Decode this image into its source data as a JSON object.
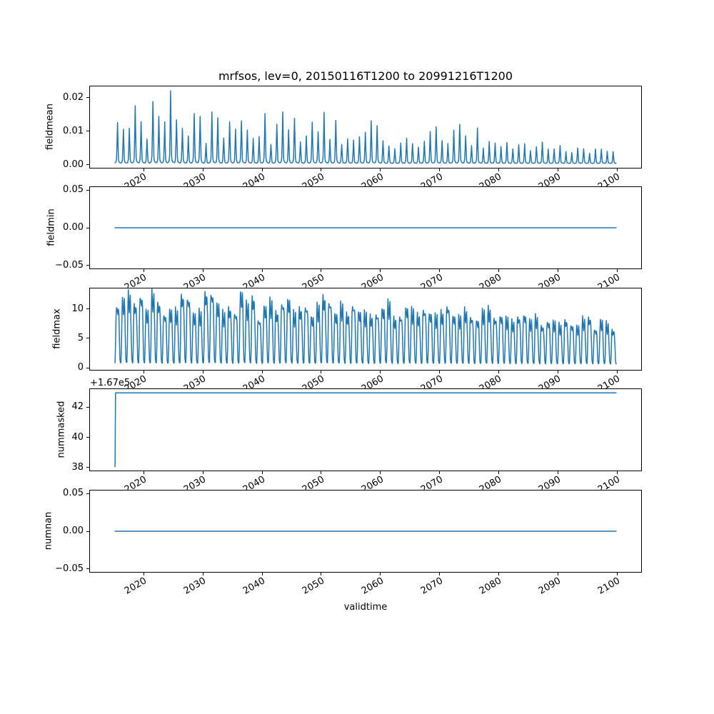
{
  "title": "mrfsos, lev=0, 20150116T1200 to 20991216T1200",
  "xlabel": "validtime",
  "line_color": "#1f77b4",
  "axis_color": "#000000",
  "background_color": "#ffffff",
  "x_ticks": [
    "2020",
    "2030",
    "2040",
    "2050",
    "2060",
    "2070",
    "2080",
    "2090",
    "2100"
  ],
  "x_tick_values": [
    2020,
    2030,
    2040,
    2050,
    2060,
    2070,
    2080,
    2090,
    2100
  ],
  "xlim": [
    2010.79,
    2104.21
  ],
  "chart_data": [
    {
      "id": "fieldmean",
      "type": "line",
      "ylabel": "fieldmean",
      "ytick_labels": [
        "0.02",
        "0.01",
        "0.00"
      ],
      "ytick_values": [
        0.02,
        0.01,
        0.0
      ],
      "ylim": [
        -0.00112,
        0.02352
      ],
      "x_range": [
        2015.04,
        2099.96
      ],
      "series": {
        "kind": "annual_spikes",
        "start_year": 2015,
        "base": 0.0002,
        "jitter": 0.04,
        "monthly_profile": [
          0.015,
          0.02,
          0.04,
          0.12,
          0.5,
          1.0,
          0.5,
          0.1,
          0.04,
          0.025,
          0.02,
          0.015
        ],
        "annual_peaks": [
          0.012,
          0.0106,
          0.011,
          0.0171,
          0.0122,
          0.0075,
          0.0194,
          0.014,
          0.0122,
          0.0224,
          0.0137,
          0.0105,
          0.008,
          0.0153,
          0.0148,
          0.006,
          0.015,
          0.014,
          0.008,
          0.0125,
          0.01,
          0.013,
          0.0105,
          0.0075,
          0.0078,
          0.0152,
          0.006,
          0.0118,
          0.015,
          0.0102,
          0.0142,
          0.0065,
          0.008,
          0.0125,
          0.01,
          0.0155,
          0.007,
          0.013,
          0.006,
          0.0075,
          0.0068,
          0.008,
          0.0098,
          0.013,
          0.011,
          0.0068,
          0.0055,
          0.0045,
          0.006,
          0.0075,
          0.0062,
          0.005,
          0.0065,
          0.0095,
          0.0115,
          0.007,
          0.0058,
          0.0099,
          0.0122,
          0.0085,
          0.0052,
          0.0105,
          0.0048,
          0.0068,
          0.006,
          0.005,
          0.0065,
          0.0045,
          0.0055,
          0.0058,
          0.004,
          0.0052,
          0.0063,
          0.0042,
          0.0045,
          0.0056,
          0.0035,
          0.0032,
          0.0048,
          0.0046,
          0.003,
          0.0042,
          0.0044,
          0.0038,
          0.0035
        ]
      }
    },
    {
      "id": "fieldmin",
      "type": "line",
      "ylabel": "fieldmin",
      "ytick_labels": [
        "0.05",
        "0.00",
        "−0.05"
      ],
      "ytick_values": [
        0.05,
        0.0,
        -0.05
      ],
      "ylim": [
        -0.055,
        0.055
      ],
      "x_range": [
        2015.04,
        2099.96
      ],
      "series": {
        "kind": "constant",
        "value": 0.0
      }
    },
    {
      "id": "fieldmax",
      "type": "line",
      "ylabel": "fieldmax",
      "ytick_labels": [
        "10",
        "5",
        "0"
      ],
      "ytick_values": [
        10,
        5,
        0
      ],
      "ylim": [
        -0.49,
        13.64
      ],
      "x_range": [
        2015.04,
        2099.96
      ],
      "series": {
        "kind": "annual_spikes",
        "start_year": 2015,
        "base": 0.3,
        "jitter": 0.08,
        "monthly_profile": [
          0.04,
          0.3,
          0.8,
          1.0,
          0.88,
          0.8,
          0.86,
          0.95,
          0.75,
          0.4,
          0.1,
          0.04
        ],
        "annual_peaks": [
          10.8,
          11.5,
          12.2,
          11.0,
          12.6,
          9.5,
          12.4,
          11.2,
          9.3,
          9.6,
          9.4,
          12.5,
          12.3,
          9.0,
          9.2,
          12.9,
          13.2,
          10.8,
          9.0,
          10.2,
          9.6,
          12.8,
          10.5,
          12.0,
          8.4,
          10.4,
          11.0,
          9.4,
          11.4,
          11.6,
          9.0,
          10.0,
          10.8,
          8.6,
          10.2,
          12.0,
          11.6,
          9.2,
          10.4,
          9.0,
          11.0,
          9.6,
          9.0,
          8.6,
          9.4,
          10.2,
          10.8,
          8.2,
          9.0,
          10.4,
          9.6,
          8.8,
          10.2,
          9.4,
          8.6,
          9.2,
          10.8,
          9.0,
          8.4,
          9.6,
          8.8,
          8.2,
          9.4,
          9.8,
          8.6,
          9.0,
          8.2,
          7.6,
          8.8,
          9.2,
          7.8,
          8.4,
          7.2,
          8.0,
          7.6,
          7.0,
          8.2,
          7.4,
          6.8,
          8.0,
          8.6,
          6.6,
          7.8,
          7.2,
          6.4
        ]
      }
    },
    {
      "id": "nummasked",
      "type": "line",
      "ylabel": "nummasked",
      "offset_text": "+1.67e5",
      "ytick_labels": [
        "42",
        "40",
        "38"
      ],
      "ytick_values": [
        42,
        40,
        38
      ],
      "ylim": [
        37.75,
        43.25
      ],
      "x_range": [
        2015.04,
        2099.96
      ],
      "series": {
        "kind": "points",
        "points": [
          [
            2015.04,
            38
          ],
          [
            2015.12,
            43
          ],
          [
            2099.96,
            43
          ]
        ],
        "value_offset": 167000,
        "note_values": "actual values 167038 rising to 167043"
      }
    },
    {
      "id": "numnan",
      "type": "line",
      "ylabel": "numnan",
      "ytick_labels": [
        "0.05",
        "0.00",
        "−0.05"
      ],
      "ytick_values": [
        0.05,
        0.0,
        -0.05
      ],
      "ylim": [
        -0.055,
        0.055
      ],
      "x_range": [
        2015.04,
        2099.96
      ],
      "series": {
        "kind": "constant",
        "value": 0.0
      }
    }
  ]
}
